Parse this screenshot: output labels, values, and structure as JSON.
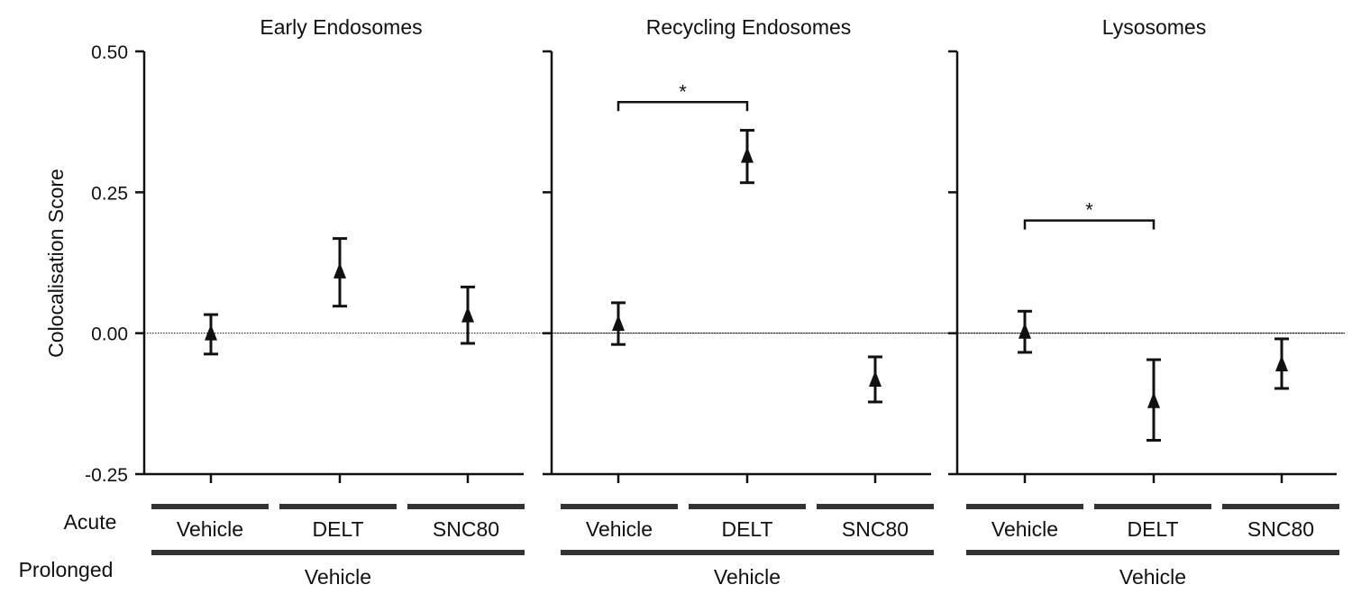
{
  "chart_data": {
    "type": "scatter",
    "ylabel": "Colocalisation Score",
    "ylim": [
      -0.25,
      0.5
    ],
    "yticks": [
      -0.25,
      0.0,
      0.25,
      0.5
    ],
    "ytick_labels": [
      "-0.25",
      "0.00",
      "0.25",
      "0.50"
    ],
    "reference_line": 0,
    "categories": [
      "Vehicle",
      "DELT",
      "SNC80"
    ],
    "row_labels": {
      "acute": "Acute",
      "prolonged": "Prolonged"
    },
    "prolonged_label": "Vehicle",
    "panels": [
      {
        "title": "Early Endosomes",
        "points": [
          {
            "label": "Vehicle",
            "mean": 0.0,
            "low": -0.037,
            "high": 0.033
          },
          {
            "label": "DELT",
            "mean": 0.11,
            "low": 0.048,
            "high": 0.168
          },
          {
            "label": "SNC80",
            "mean": 0.032,
            "low": -0.018,
            "high": 0.082
          }
        ],
        "significance": []
      },
      {
        "title": "Recycling Endosomes",
        "points": [
          {
            "label": "Vehicle",
            "mean": 0.017,
            "low": -0.02,
            "high": 0.054
          },
          {
            "label": "DELT",
            "mean": 0.315,
            "low": 0.267,
            "high": 0.36
          },
          {
            "label": "SNC80",
            "mean": -0.082,
            "low": -0.122,
            "high": -0.042
          }
        ],
        "significance": [
          {
            "from": 0,
            "to": 1,
            "level": 0.41,
            "label": "*"
          }
        ]
      },
      {
        "title": "Lysosomes",
        "points": [
          {
            "label": "Vehicle",
            "mean": 0.003,
            "low": -0.034,
            "high": 0.039
          },
          {
            "label": "DELT",
            "mean": -0.12,
            "low": -0.19,
            "high": -0.047
          },
          {
            "label": "SNC80",
            "mean": -0.055,
            "low": -0.098,
            "high": -0.01
          }
        ],
        "significance": [
          {
            "from": 0,
            "to": 1,
            "level": 0.2,
            "label": "*"
          }
        ]
      }
    ]
  }
}
